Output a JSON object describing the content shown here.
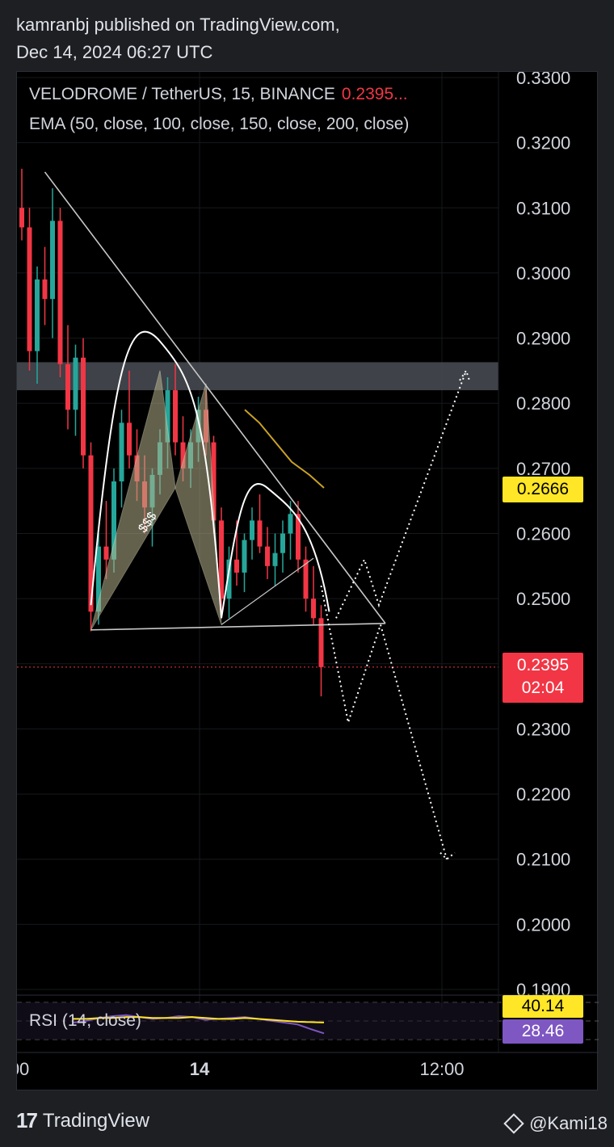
{
  "header": {
    "line1": "kamranbj published on TradingView.com,",
    "line2": "Dec 14, 2024 06:27 UTC"
  },
  "legend": {
    "symbol": "VELODROME / TetherUS, 15, BINANCE",
    "price": "0.2395...",
    "ema": "EMA (50, close, 100, close, 150, close, 200, close)"
  },
  "rsi": {
    "label": "RSI (14, close)",
    "value_ma": "40.14",
    "value_rsi": "28.46"
  },
  "price_tags": {
    "ema_level": "0.2666",
    "last_price": "0.2395",
    "countdown": "02:04"
  },
  "annotation": {
    "text": "$$$"
  },
  "footer": {
    "brand": "TradingView",
    "watermark": "@Kami18"
  },
  "colors": {
    "up": "#26a69a",
    "down": "#f23645",
    "ema": "#c9a227",
    "rsi_line": "#7e57c2",
    "rsi_ma": "#ffe626"
  },
  "chart_data": {
    "type": "candlestick",
    "title": "VELODROME / TetherUS, 15, BINANCE",
    "interval": "15",
    "last_price": 0.2395,
    "y_ticks": [
      "0.3300",
      "0.3200",
      "0.3100",
      "0.3000",
      "0.2900",
      "0.2800",
      "0.2700",
      "0.2600",
      "0.2500",
      "0.2400",
      "0.2300",
      "0.2200",
      "0.2100",
      "0.2000",
      "0.1900"
    ],
    "x_ticks": [
      ":00",
      "14",
      "12:00"
    ],
    "ylim": [
      0.19,
      0.33
    ],
    "grid": true,
    "candles": [
      {
        "o": 0.31,
        "h": 0.316,
        "l": 0.305,
        "c": 0.307
      },
      {
        "o": 0.307,
        "h": 0.31,
        "l": 0.285,
        "c": 0.288
      },
      {
        "o": 0.288,
        "h": 0.301,
        "l": 0.283,
        "c": 0.299
      },
      {
        "o": 0.299,
        "h": 0.304,
        "l": 0.292,
        "c": 0.296
      },
      {
        "o": 0.296,
        "h": 0.313,
        "l": 0.29,
        "c": 0.308
      },
      {
        "o": 0.308,
        "h": 0.31,
        "l": 0.284,
        "c": 0.286
      },
      {
        "o": 0.286,
        "h": 0.292,
        "l": 0.276,
        "c": 0.279
      },
      {
        "o": 0.279,
        "h": 0.289,
        "l": 0.275,
        "c": 0.287
      },
      {
        "o": 0.287,
        "h": 0.29,
        "l": 0.27,
        "c": 0.272
      },
      {
        "o": 0.272,
        "h": 0.274,
        "l": 0.245,
        "c": 0.248
      },
      {
        "o": 0.248,
        "h": 0.26,
        "l": 0.246,
        "c": 0.258
      },
      {
        "o": 0.258,
        "h": 0.265,
        "l": 0.253,
        "c": 0.256
      },
      {
        "o": 0.256,
        "h": 0.27,
        "l": 0.254,
        "c": 0.268
      },
      {
        "o": 0.268,
        "h": 0.279,
        "l": 0.264,
        "c": 0.277
      },
      {
        "o": 0.277,
        "h": 0.285,
        "l": 0.27,
        "c": 0.272
      },
      {
        "o": 0.272,
        "h": 0.276,
        "l": 0.265,
        "c": 0.268
      },
      {
        "o": 0.268,
        "h": 0.272,
        "l": 0.26,
        "c": 0.264
      },
      {
        "o": 0.264,
        "h": 0.27,
        "l": 0.258,
        "c": 0.269
      },
      {
        "o": 0.269,
        "h": 0.276,
        "l": 0.266,
        "c": 0.274
      },
      {
        "o": 0.274,
        "h": 0.284,
        "l": 0.27,
        "c": 0.282
      },
      {
        "o": 0.282,
        "h": 0.286,
        "l": 0.272,
        "c": 0.274
      },
      {
        "o": 0.274,
        "h": 0.278,
        "l": 0.268,
        "c": 0.27
      },
      {
        "o": 0.27,
        "h": 0.276,
        "l": 0.267,
        "c": 0.274
      },
      {
        "o": 0.274,
        "h": 0.281,
        "l": 0.271,
        "c": 0.279
      },
      {
        "o": 0.279,
        "h": 0.282,
        "l": 0.272,
        "c": 0.274
      },
      {
        "o": 0.274,
        "h": 0.275,
        "l": 0.26,
        "c": 0.262
      },
      {
        "o": 0.262,
        "h": 0.264,
        "l": 0.248,
        "c": 0.25
      },
      {
        "o": 0.25,
        "h": 0.258,
        "l": 0.247,
        "c": 0.256
      },
      {
        "o": 0.256,
        "h": 0.262,
        "l": 0.252,
        "c": 0.254
      },
      {
        "o": 0.254,
        "h": 0.26,
        "l": 0.251,
        "c": 0.259
      },
      {
        "o": 0.259,
        "h": 0.264,
        "l": 0.256,
        "c": 0.262
      },
      {
        "o": 0.262,
        "h": 0.266,
        "l": 0.257,
        "c": 0.258
      },
      {
        "o": 0.258,
        "h": 0.261,
        "l": 0.253,
        "c": 0.255
      },
      {
        "o": 0.255,
        "h": 0.26,
        "l": 0.252,
        "c": 0.257
      },
      {
        "o": 0.257,
        "h": 0.262,
        "l": 0.254,
        "c": 0.26
      },
      {
        "o": 0.26,
        "h": 0.265,
        "l": 0.256,
        "c": 0.263
      },
      {
        "o": 0.263,
        "h": 0.265,
        "l": 0.254,
        "c": 0.256
      },
      {
        "o": 0.256,
        "h": 0.258,
        "l": 0.248,
        "c": 0.25
      },
      {
        "o": 0.25,
        "h": 0.255,
        "l": 0.246,
        "c": 0.247
      },
      {
        "o": 0.247,
        "h": 0.249,
        "l": 0.235,
        "c": 0.2395
      }
    ],
    "ema": [
      0.279,
      0.277,
      0.274,
      0.271,
      0.269,
      0.267
    ],
    "horizontal_zone": [
      0.282,
      0.2863
    ],
    "projection_up_target": 0.285,
    "projection_down_target": 0.21,
    "rsi_series": [
      {
        "name": "RSI",
        "values": [
          40,
          42,
          45,
          47,
          48,
          46,
          44,
          45,
          47,
          46,
          43,
          44,
          45,
          46,
          44,
          42,
          40,
          38,
          33,
          28.46
        ]
      },
      {
        "name": "RSI MA",
        "values": [
          44,
          44,
          45,
          45,
          46,
          46,
          45,
          45,
          45,
          46,
          45,
          44,
          44,
          45,
          44,
          43,
          42,
          41,
          40.5,
          40.14
        ]
      }
    ]
  }
}
